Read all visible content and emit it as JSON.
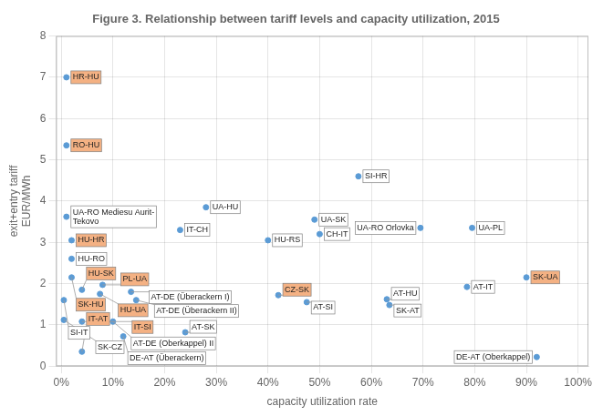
{
  "chart_data": {
    "type": "scatter",
    "title": "Figure 3. Relationship between tariff levels and capacity utilization, 2015",
    "xlabel": "capacity utilization rate",
    "ylabel": "exit+entry tariff\nEUR/MWh",
    "xlim": [
      -0.01,
      1.02
    ],
    "ylim": [
      0,
      8
    ],
    "xticks": [
      {
        "value": 0,
        "label": "0%"
      },
      {
        "value": 0.1,
        "label": "10%"
      },
      {
        "value": 0.2,
        "label": "20%"
      },
      {
        "value": 0.3,
        "label": "30%"
      },
      {
        "value": 0.4,
        "label": "40%"
      },
      {
        "value": 0.5,
        "label": "50%"
      },
      {
        "value": 0.6,
        "label": "60%"
      },
      {
        "value": 0.7,
        "label": "70%"
      },
      {
        "value": 0.8,
        "label": "80%"
      },
      {
        "value": 0.9,
        "label": "90%"
      },
      {
        "value": 1.0,
        "label": "100%"
      }
    ],
    "yticks": [
      0,
      1,
      2,
      3,
      4,
      5,
      6,
      7,
      8
    ],
    "grid": true,
    "color": "#5b9bd5",
    "x": [
      0.01,
      0.01,
      0.01,
      0.02,
      0.02,
      0.02,
      0.04,
      0.075,
      0.08,
      0.005,
      0.005,
      0.04,
      0.04,
      0.135,
      0.145,
      0.1,
      0.12,
      0.24,
      0.28,
      0.23,
      0.4,
      0.42,
      0.475,
      0.49,
      0.5,
      0.575,
      0.63,
      0.635,
      0.695,
      0.795,
      0.785,
      0.9,
      0.92
    ],
    "values": [
      7.0,
      5.35,
      3.62,
      3.05,
      2.6,
      2.15,
      1.85,
      1.75,
      1.97,
      1.6,
      1.12,
      1.08,
      0.35,
      1.8,
      1.6,
      1.08,
      0.72,
      0.82,
      3.85,
      3.3,
      3.05,
      1.72,
      1.55,
      3.55,
      3.2,
      4.6,
      1.62,
      1.48,
      3.35,
      3.35,
      1.92,
      2.15,
      0.22
    ],
    "annotations": [
      {
        "text": "HR-HU",
        "x": 0.01,
        "y": 7.0,
        "color": "#f4b183"
      },
      {
        "text": "RO-HU",
        "x": 0.01,
        "y": 5.35,
        "color": "#f4b183"
      },
      {
        "text": "UA-RO Mediesu Aurit-\nTekovo",
        "x": 0.01,
        "y": 3.62,
        "color": "#ffffff"
      },
      {
        "text": "HU-HR",
        "x": 0.02,
        "y": 3.05,
        "color": "#f4b183"
      },
      {
        "text": "HU-RO",
        "x": 0.02,
        "y": 2.6,
        "color": "#ffffff"
      },
      {
        "text": "SK-HU",
        "x": 0.02,
        "y": 2.15,
        "color": "#f4b183"
      },
      {
        "text": "HU-SK",
        "x": 0.04,
        "y": 1.85,
        "color": "#f4b183"
      },
      {
        "text": "HU-UA",
        "x": 0.075,
        "y": 1.75,
        "color": "#f4b183"
      },
      {
        "text": "PL-UA",
        "x": 0.08,
        "y": 1.97,
        "color": "#f4b183"
      },
      {
        "text": "SI-IT",
        "x": 0.005,
        "y": 1.6,
        "color": "#ffffff"
      },
      {
        "text": "SK-CZ",
        "x": 0.005,
        "y": 1.12,
        "color": "#ffffff"
      },
      {
        "text": "IT-SI",
        "x": 0.04,
        "y": 1.08,
        "color": "#f4b183"
      },
      {
        "text": "IT-AT",
        "x": 0.04,
        "y": 0.35,
        "color": "#f4b183"
      },
      {
        "text": "AT-DE (Überackern I)",
        "x": 0.135,
        "y": 1.8,
        "color": "#ffffff"
      },
      {
        "text": "AT-DE (Überackern II)",
        "x": 0.145,
        "y": 1.6,
        "color": "#ffffff"
      },
      {
        "text": "AT-DE (Oberkappel) II",
        "x": 0.1,
        "y": 1.08,
        "color": "#ffffff"
      },
      {
        "text": "DE-AT (Überackern)",
        "x": 0.12,
        "y": 0.72,
        "color": "#ffffff"
      },
      {
        "text": "AT-SK",
        "x": 0.24,
        "y": 0.82,
        "color": "#ffffff"
      },
      {
        "text": "UA-HU",
        "x": 0.28,
        "y": 3.85,
        "color": "#ffffff"
      },
      {
        "text": "IT-CH",
        "x": 0.23,
        "y": 3.3,
        "color": "#ffffff"
      },
      {
        "text": "HU-RS",
        "x": 0.4,
        "y": 3.05,
        "color": "#ffffff"
      },
      {
        "text": "CZ-SK",
        "x": 0.42,
        "y": 1.72,
        "color": "#f4b183"
      },
      {
        "text": "AT-SI",
        "x": 0.475,
        "y": 1.55,
        "color": "#ffffff"
      },
      {
        "text": "UA-SK",
        "x": 0.49,
        "y": 3.55,
        "color": "#ffffff"
      },
      {
        "text": "CH-IT",
        "x": 0.5,
        "y": 3.2,
        "color": "#ffffff"
      },
      {
        "text": "SI-HR",
        "x": 0.575,
        "y": 4.6,
        "color": "#ffffff"
      },
      {
        "text": "AT-HU",
        "x": 0.63,
        "y": 1.62,
        "color": "#ffffff"
      },
      {
        "text": "SK-AT",
        "x": 0.635,
        "y": 1.48,
        "color": "#ffffff"
      },
      {
        "text": "UA-RO Orlovka",
        "x": 0.695,
        "y": 3.35,
        "color": "#ffffff"
      },
      {
        "text": "UA-PL",
        "x": 0.795,
        "y": 3.35,
        "color": "#ffffff"
      },
      {
        "text": "AT-IT",
        "x": 0.785,
        "y": 1.92,
        "color": "#ffffff"
      },
      {
        "text": "SK-UA",
        "x": 0.9,
        "y": 2.15,
        "color": "#f4b183"
      },
      {
        "text": "DE-AT (Oberkappel)",
        "x": 0.92,
        "y": 0.22,
        "color": "#ffffff"
      }
    ]
  }
}
